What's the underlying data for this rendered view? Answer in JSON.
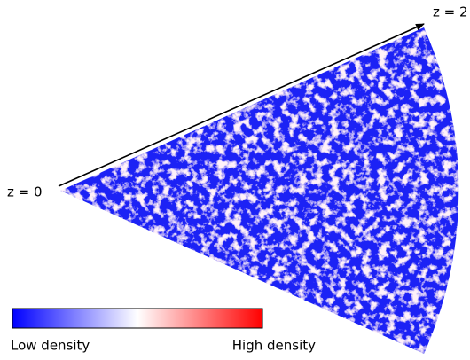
{
  "labels": {
    "start": "z = 0",
    "end": "z = 2"
  },
  "colorbar": {
    "low": "Low density",
    "high": "High density"
  }
}
